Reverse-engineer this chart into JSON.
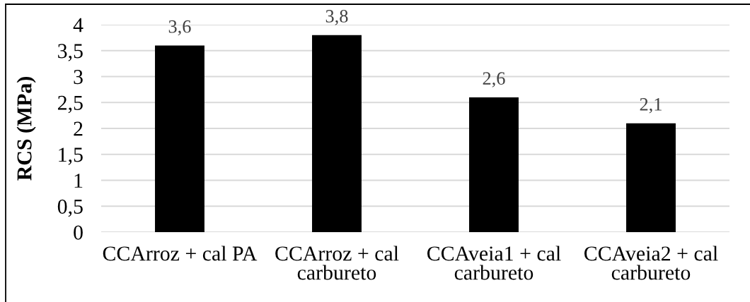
{
  "chart_data": {
    "type": "bar",
    "ylabel": "RCS (MPa)",
    "categories": [
      "CCArroz + cal PA",
      "CCArroz + cal\ncarbureto",
      "CCAveia1 + cal\ncarbureto",
      "CCAveia2 + cal\ncarbureto"
    ],
    "values": [
      3.6,
      3.8,
      2.6,
      2.1
    ],
    "color": "#000000",
    "value_labels": [
      "3,6",
      "3,8",
      "2,6",
      "2,1"
    ],
    "ylim": [
      0,
      4
    ],
    "yticks": [
      0,
      {
        "value": 0.5,
        "label": "0,5"
      },
      1,
      {
        "value": 1.5,
        "label": "1,5"
      },
      2,
      {
        "value": 2.5,
        "label": "2,5"
      },
      3,
      {
        "value": 3.5,
        "label": "3,5"
      },
      4
    ],
    "grid": "y"
  }
}
